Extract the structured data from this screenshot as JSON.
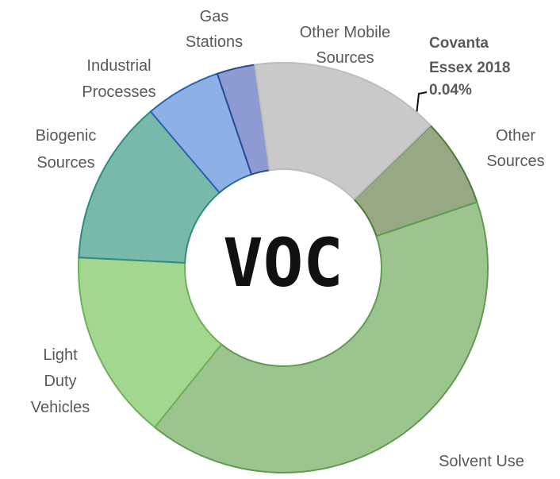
{
  "chart_data": {
    "type": "donut",
    "center_label": "VOC",
    "categories": [
      "Covanta Essex 2018",
      "Other Sources",
      "Solvent Use",
      "Light Duty Vehicles",
      "Biogenic Sources",
      "Industrial Processes",
      "Gas Stations",
      "Other Mobile Sources"
    ],
    "values": [
      0.04,
      7,
      41,
      15,
      13,
      6,
      3,
      15
    ],
    "value_labels": [
      "0.04%",
      "7%",
      "41%",
      "15%",
      "13%",
      "6%",
      "3%",
      "15%"
    ],
    "colors": [
      "#333333",
      "#96a884",
      "#9cc48f",
      "#a3d68f",
      "#78b9a9",
      "#8eb0e6",
      "#8e9bd3",
      "#c9c9c9"
    ],
    "stroke_colors": [
      "#333333",
      "#4e7a3a",
      "#5f9c4f",
      "#6fb05a",
      "#2f8a82",
      "#2c64b0",
      "#2c4a9a",
      "#bdbdbd"
    ]
  }
}
